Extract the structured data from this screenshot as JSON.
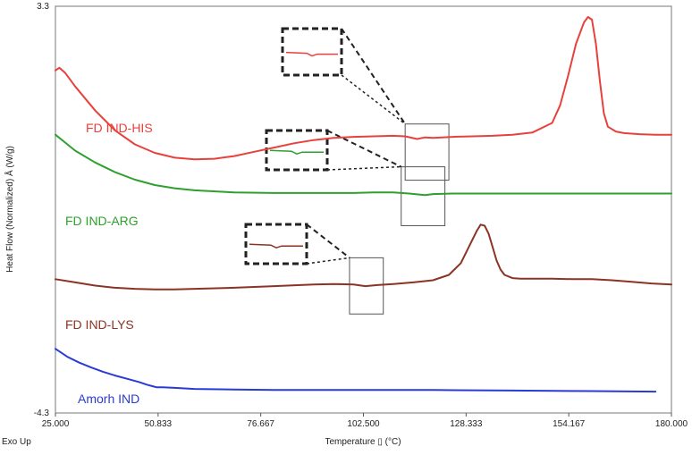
{
  "chart_data": {
    "type": "line",
    "title": "",
    "xlabel": "Temperature ▯ (°C)",
    "ylabel": "Heat Flow (Normalized) Å (W/g)",
    "corner_label": "Exo Up",
    "xlim": [
      25.0,
      180.0
    ],
    "ylim": [
      -4.3,
      3.3
    ],
    "x_ticks": [
      25.0,
      50.833,
      76.667,
      102.5,
      128.333,
      154.167,
      180.0
    ],
    "x_tick_labels": [
      "25.000",
      "50.833",
      "76.667",
      "102.500",
      "128.333",
      "154.167",
      "180.000"
    ],
    "y_tick_labels": [
      "3.3",
      "-4.3"
    ],
    "series": [
      {
        "name": "FD IND-HIS",
        "color": "#e8413c",
        "x": [
          25.0,
          26.0,
          27.5,
          30.0,
          35.0,
          40.0,
          45.0,
          50.0,
          55.0,
          60.0,
          65.0,
          70.0,
          75.0,
          80.0,
          85.0,
          90.0,
          95.0,
          100.0,
          105.0,
          110.0,
          113.0,
          116.0,
          118.0,
          120.0,
          125.0,
          130.0,
          135.0,
          140.0,
          145.0,
          150.0,
          152.0,
          154.0,
          156.0,
          158.0,
          159.0,
          160.0,
          161.0,
          162.0,
          163.0,
          164.0,
          166.0,
          168.0,
          172.0,
          176.0,
          180.0
        ],
        "y": [
          2.1,
          2.15,
          2.05,
          1.8,
          1.35,
          0.98,
          0.72,
          0.56,
          0.47,
          0.44,
          0.45,
          0.5,
          0.58,
          0.66,
          0.74,
          0.8,
          0.84,
          0.86,
          0.87,
          0.88,
          0.87,
          0.82,
          0.85,
          0.84,
          0.86,
          0.87,
          0.88,
          0.9,
          0.94,
          1.12,
          1.45,
          2.0,
          2.6,
          3.0,
          3.1,
          3.05,
          2.6,
          1.9,
          1.3,
          1.05,
          0.96,
          0.93,
          0.91,
          0.9,
          0.9
        ]
      },
      {
        "name": "FD IND-ARG",
        "color": "#2ea02e",
        "x": [
          25.0,
          27.0,
          30.0,
          35.0,
          40.0,
          45.0,
          50.0,
          55.0,
          60.0,
          70.0,
          80.0,
          90.0,
          100.0,
          105.0,
          110.0,
          114.0,
          118.0,
          120.0,
          125.0,
          130.0,
          140.0,
          150.0,
          160.0,
          170.0,
          180.0
        ],
        "y": [
          0.9,
          0.78,
          0.6,
          0.38,
          0.2,
          0.06,
          -0.04,
          -0.1,
          -0.14,
          -0.18,
          -0.19,
          -0.19,
          -0.19,
          -0.18,
          -0.18,
          -0.2,
          -0.23,
          -0.21,
          -0.2,
          -0.2,
          -0.2,
          -0.2,
          -0.2,
          -0.2,
          -0.2
        ]
      },
      {
        "name": "FD IND-LYS",
        "color": "#8b3325",
        "x": [
          25.0,
          30.0,
          35.0,
          40.0,
          45.0,
          50.0,
          55.0,
          60.0,
          70.0,
          80.0,
          90.0,
          95.0,
          100.0,
          103.0,
          106.0,
          110.0,
          115.0,
          120.0,
          124.0,
          127.0,
          129.0,
          131.0,
          132.0,
          133.0,
          134.0,
          135.0,
          136.0,
          137.0,
          138.0,
          140.0,
          142.0,
          145.0,
          150.0,
          155.0,
          160.0,
          165.0,
          170.0,
          175.0,
          180.0
        ],
        "y": [
          -1.8,
          -1.86,
          -1.92,
          -1.96,
          -1.98,
          -1.99,
          -1.99,
          -1.98,
          -1.96,
          -1.93,
          -1.9,
          -1.89,
          -1.9,
          -1.93,
          -1.91,
          -1.89,
          -1.86,
          -1.82,
          -1.72,
          -1.5,
          -1.2,
          -0.9,
          -0.78,
          -0.8,
          -0.95,
          -1.2,
          -1.45,
          -1.62,
          -1.72,
          -1.78,
          -1.79,
          -1.79,
          -1.79,
          -1.8,
          -1.8,
          -1.82,
          -1.85,
          -1.88,
          -1.9
        ]
      },
      {
        "name": "Amorh IND",
        "color": "#2a3ad6",
        "x": [
          25.0,
          28.0,
          31.0,
          34.0,
          37.0,
          40.0,
          43.0,
          46.0,
          48.0,
          49.5,
          50.5,
          52.0,
          55.0,
          60.0,
          70.0,
          80.0,
          90.0,
          100.0,
          120.0,
          140.0,
          160.0,
          176.0
        ],
        "y": [
          -3.1,
          -3.25,
          -3.36,
          -3.45,
          -3.53,
          -3.6,
          -3.66,
          -3.72,
          -3.77,
          -3.8,
          -3.82,
          -3.82,
          -3.83,
          -3.85,
          -3.86,
          -3.87,
          -3.87,
          -3.87,
          -3.87,
          -3.88,
          -3.89,
          -3.9
        ]
      }
    ],
    "annotations": [
      {
        "name": "zoom-box-his",
        "xlim": [
          113.0,
          124.0
        ],
        "ylim": [
          0.05,
          1.1
        ],
        "color": "#e8413c"
      },
      {
        "name": "zoom-box-arg",
        "xlim": [
          112.0,
          123.0
        ],
        "ylim": [
          -0.8,
          0.3
        ],
        "color": "#2ea02e"
      },
      {
        "name": "zoom-box-lys",
        "xlim": [
          99.0,
          107.5
        ],
        "ylim": [
          -2.45,
          -1.4
        ],
        "color": "#8b3325"
      }
    ]
  }
}
